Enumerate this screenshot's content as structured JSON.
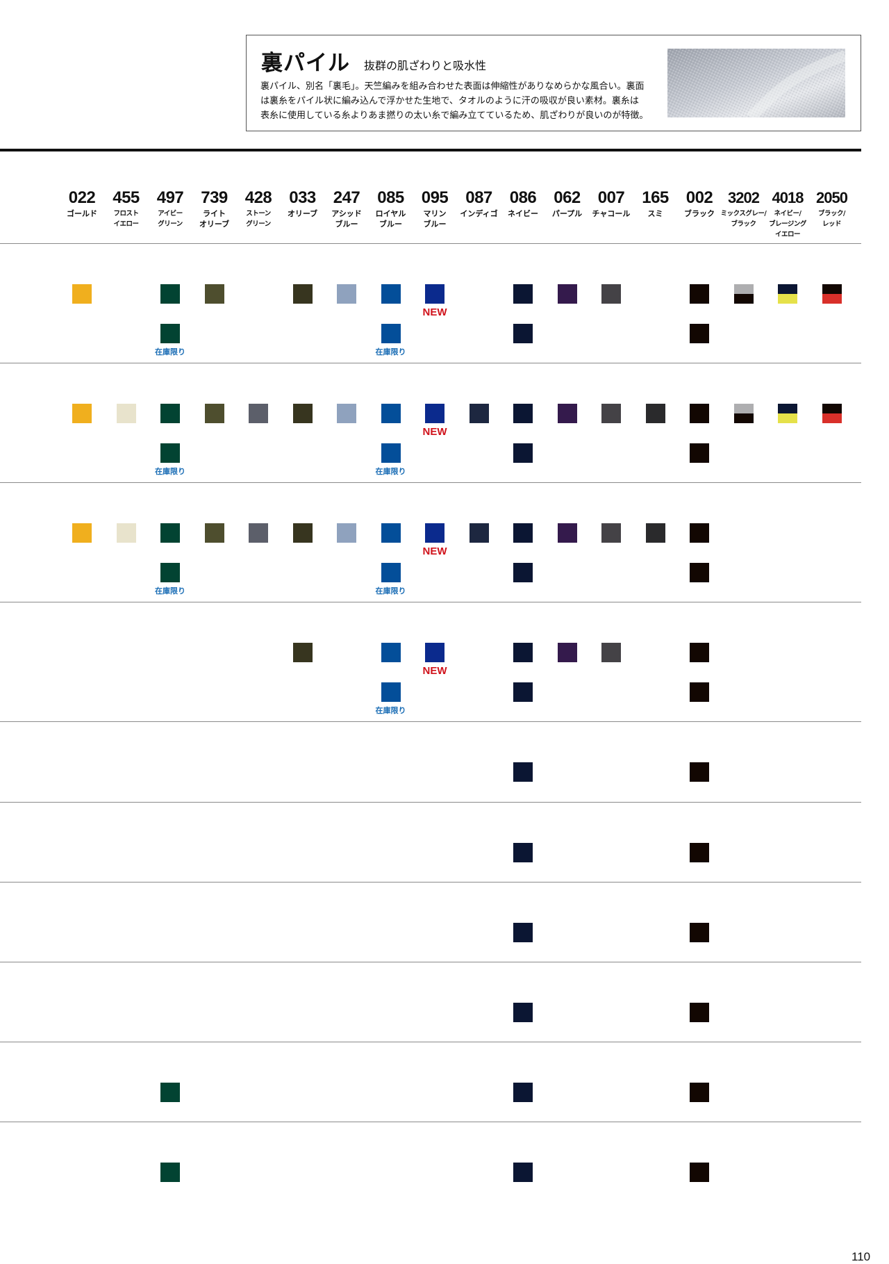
{
  "header": {
    "title": "裏パイル",
    "subtitle": "抜群の肌ざわりと吸水性",
    "description_lines": [
      "裏パイル、別名「裏毛」。天竺編みを組み合わせた表面は伸縮性がありなめらかな風合い。裏面",
      "は裏糸をパイル状に編み込んで浮かせた生地で、タオルのように汗の吸収が良い素材。裏糸は",
      "表糸に使用している糸よりあま撚りの太い糸で編み立てているため、肌ざわりが良いのが特徴。"
    ]
  },
  "colors": [
    {
      "code": "022",
      "name": "ゴールド",
      "hex": "#F0AF1E"
    },
    {
      "code": "455",
      "name": "フロスト\nイエロー",
      "hex": "#E8E3CC"
    },
    {
      "code": "497",
      "name": "アイビー\nグリーン",
      "hex": "#024332"
    },
    {
      "code": "739",
      "name": "ライト\nオリーブ",
      "hex": "#4E4E2E"
    },
    {
      "code": "428",
      "name": "ストーン\nグリーン",
      "hex": "#5C5F6A"
    },
    {
      "code": "033",
      "name": "オリーブ",
      "hex": "#37351F"
    },
    {
      "code": "247",
      "name": "アシッド\nブルー",
      "hex": "#8FA2BE"
    },
    {
      "code": "085",
      "name": "ロイヤル\nブルー",
      "hex": "#034E99"
    },
    {
      "code": "095",
      "name": "マリン\nブルー",
      "hex": "#0B2A8D"
    },
    {
      "code": "087",
      "name": "インディゴ",
      "hex": "#1D2740"
    },
    {
      "code": "086",
      "name": "ネイビー",
      "hex": "#0B1633"
    },
    {
      "code": "062",
      "name": "パープル",
      "hex": "#341A4C"
    },
    {
      "code": "007",
      "name": "チャコール",
      "hex": "#444246"
    },
    {
      "code": "165",
      "name": "スミ",
      "hex": "#2A2A2C"
    },
    {
      "code": "002",
      "name": "ブラック",
      "hex": "#120702"
    },
    {
      "code": "3202",
      "name": "ミックスグレー/\nブラック",
      "hex": "#AEAEB0",
      "hex2": "#120702"
    },
    {
      "code": "4018",
      "name": "ネイビー/\nブレージング\nイエロー",
      "hex": "#0B1633",
      "hex2": "#E5E14A"
    },
    {
      "code": "2050",
      "name": "ブラック/\nレッド",
      "hex": "#120702",
      "hex2": "#D9302A"
    }
  ],
  "labels": {
    "new": "NEW",
    "limited": "在庫限り"
  },
  "rows": [
    {
      "main": [
        0,
        2,
        3,
        5,
        6,
        7,
        8,
        10,
        11,
        12,
        14,
        15,
        16,
        17
      ],
      "new": [
        8
      ],
      "sub": [
        2,
        7,
        10,
        14
      ],
      "limited": [
        2,
        7
      ]
    },
    {
      "main": [
        0,
        1,
        2,
        3,
        4,
        5,
        6,
        7,
        8,
        9,
        10,
        11,
        12,
        13,
        14,
        15,
        16,
        17
      ],
      "new": [
        8
      ],
      "sub": [
        2,
        7,
        10,
        14
      ],
      "limited": [
        2,
        7
      ]
    },
    {
      "main": [
        0,
        1,
        2,
        3,
        4,
        5,
        6,
        7,
        8,
        9,
        10,
        11,
        12,
        13,
        14
      ],
      "new": [
        8
      ],
      "sub": [
        2,
        7,
        10,
        14
      ],
      "limited": [
        2,
        7
      ]
    },
    {
      "main": [
        5,
        7,
        8,
        10,
        11,
        12,
        14
      ],
      "new": [
        8
      ],
      "sub": [
        7,
        10,
        14
      ],
      "limited": [
        7
      ]
    },
    {
      "main": [
        10,
        14
      ],
      "new": [],
      "sub": [],
      "limited": []
    },
    {
      "main": [
        10,
        14
      ],
      "new": [],
      "sub": [],
      "limited": []
    },
    {
      "main": [
        10,
        14
      ],
      "new": [],
      "sub": [],
      "limited": []
    },
    {
      "main": [
        10,
        14
      ],
      "new": [],
      "sub": [],
      "limited": []
    },
    {
      "main": [
        2,
        10,
        14
      ],
      "new": [],
      "sub": [],
      "limited": []
    },
    {
      "main": [
        2,
        10,
        14
      ],
      "new": [],
      "sub": [],
      "limited": []
    }
  ],
  "page_number": "110"
}
